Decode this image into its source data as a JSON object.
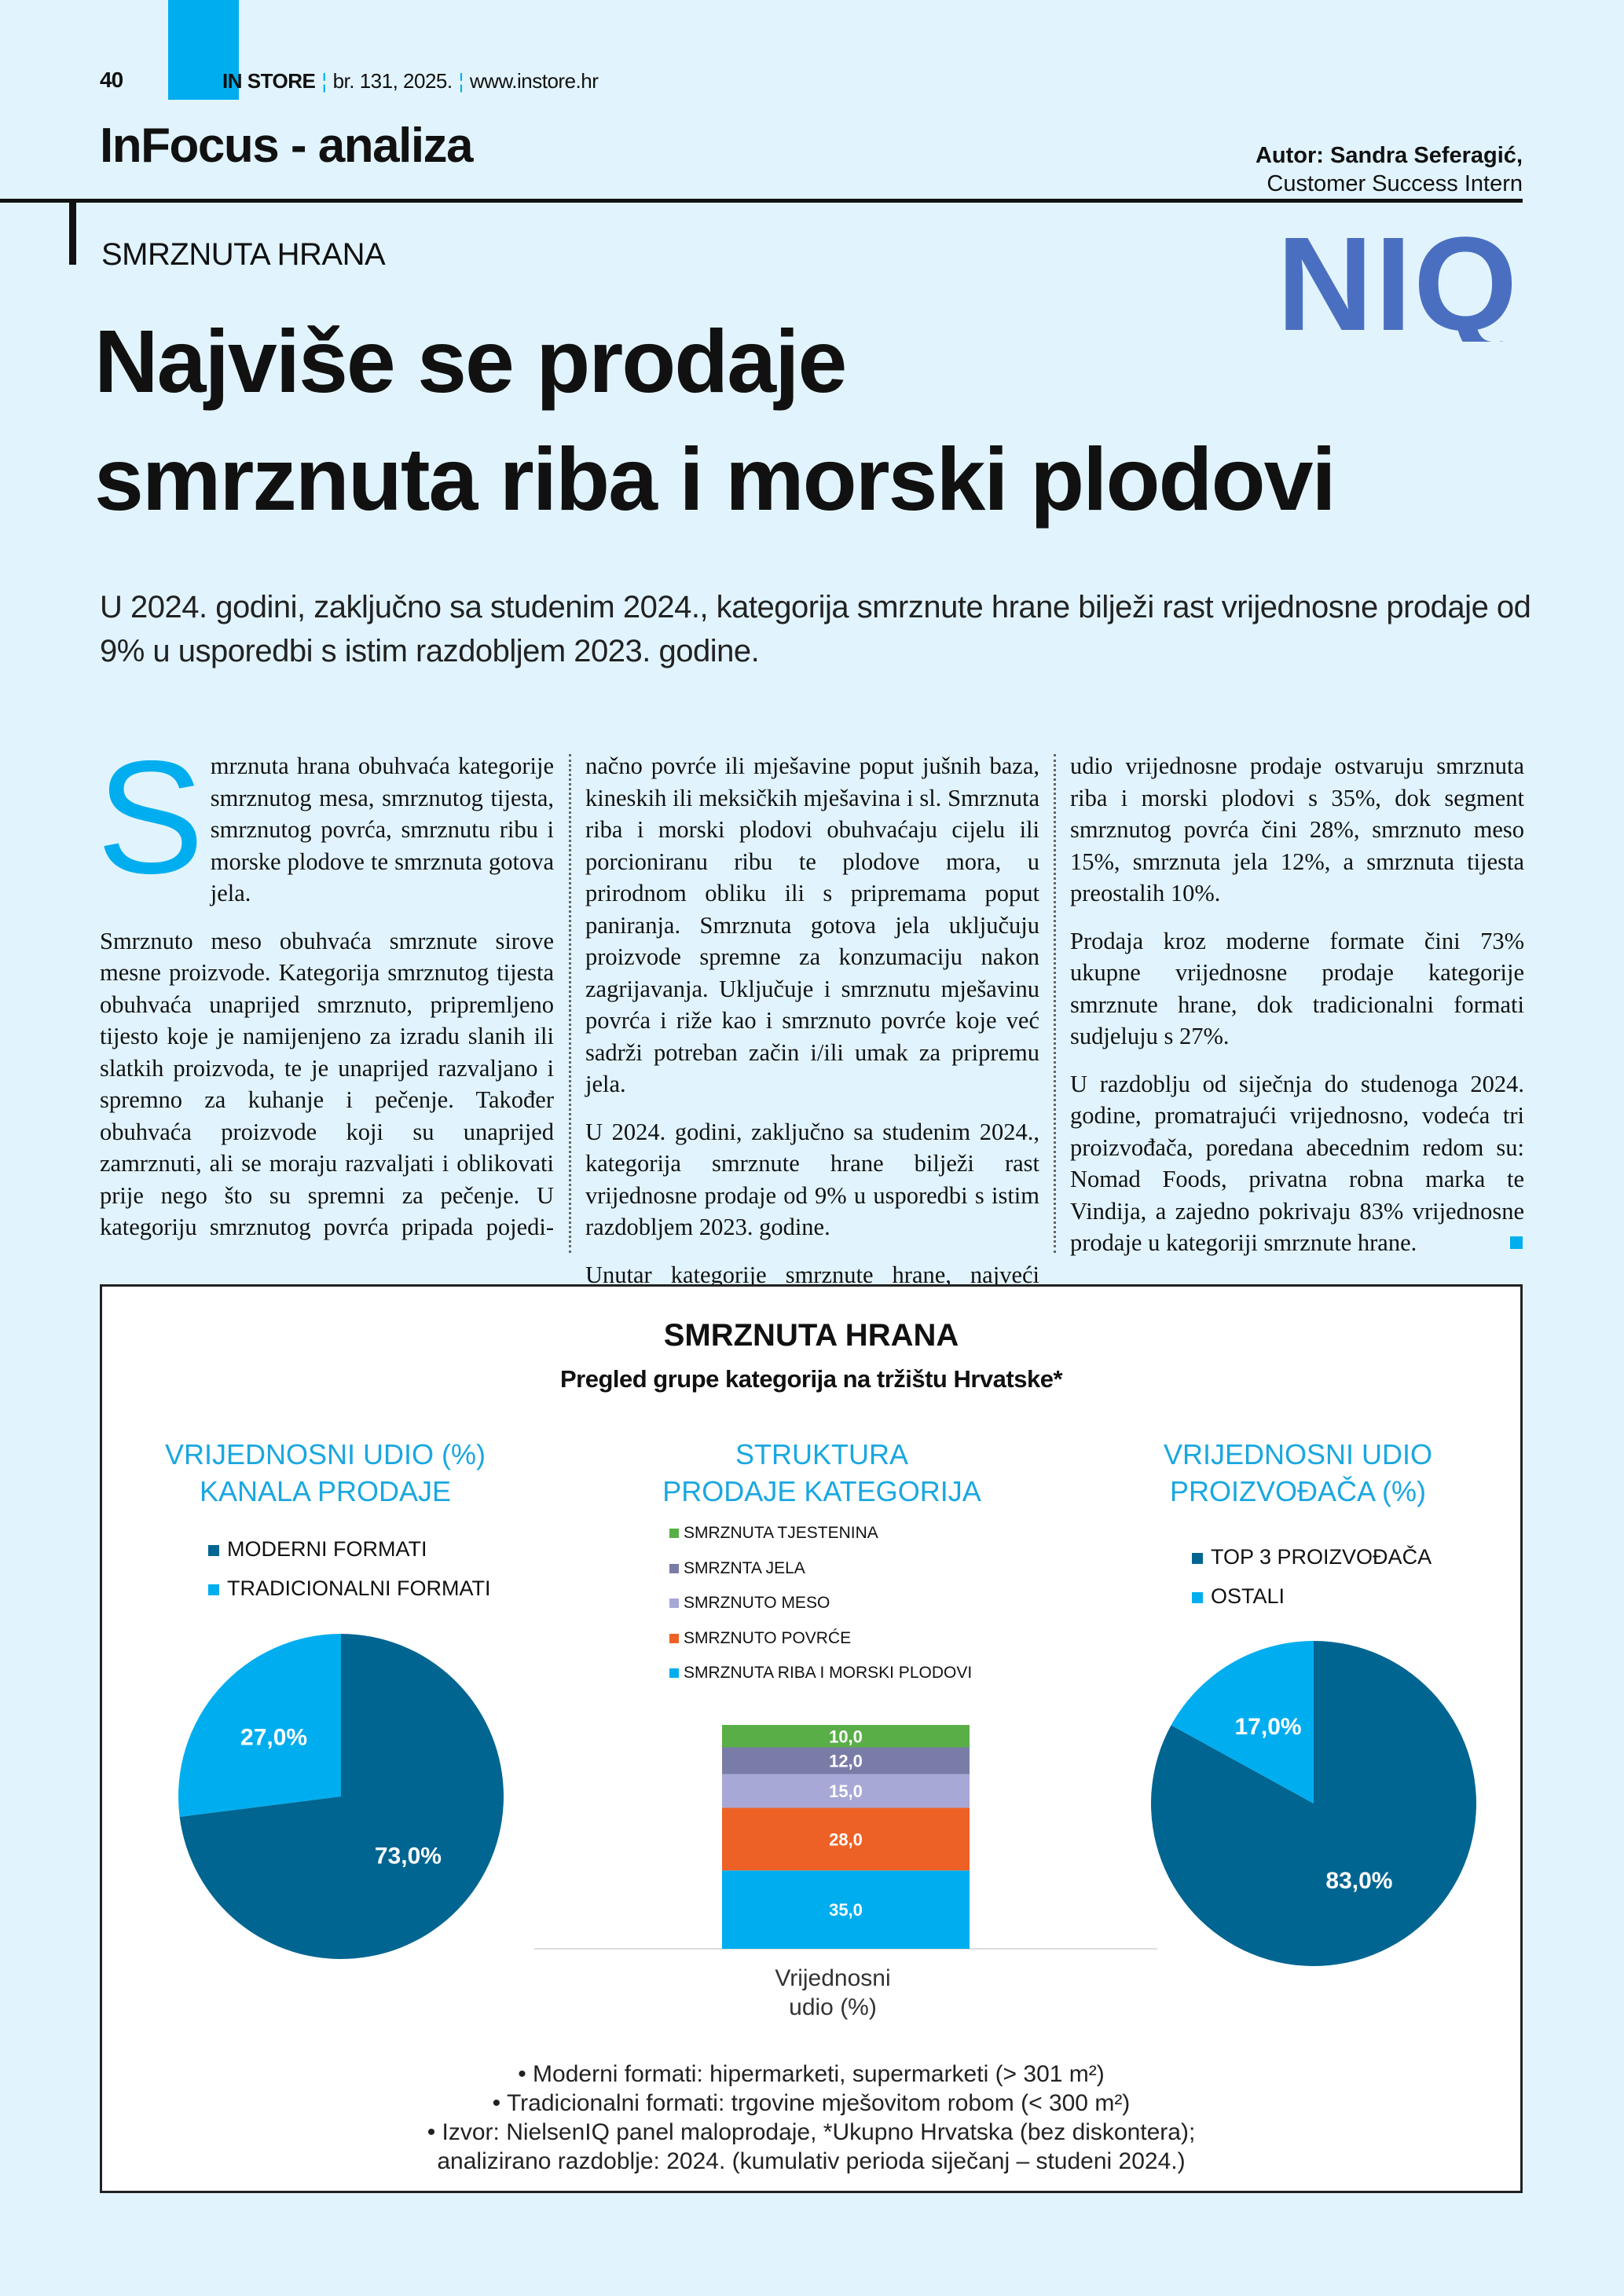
{
  "header": {
    "page_number": "40",
    "logo": "IN STORE",
    "issue": "br. 131, 2025.",
    "website": "www.instore.hr",
    "section": "InFocus - analiza",
    "author": "Autor: Sandra Seferagić,",
    "author_role": "Customer Success Intern",
    "brand_logo": "NIQ"
  },
  "article": {
    "kicker": "SMRZNUTA HRANA",
    "headline_line1": "Najviše se prodaje",
    "headline_line2": "smrznuta riba i morski plodovi",
    "lead": "U 2024. godini, zaključno sa studenim 2024., kategorija smrznute hrane bilježi rast vrijednosne prodaje od 9% u usporedbi s istim razdobljem 2023. godine.",
    "drop_cap": "S",
    "col1": [
      "mrznuta hrana obuhvaća kategorije smrznutog mesa, smrznutog tijesta, smrznutog povrća, smrznutu ribu i morske plodove te smrznuta gotova jela.",
      "Smrznuto meso obuhvaća smrznute sirove mesne proizvode. Kategorija smrznutog tijesta obuhvaća unaprijed smrznuto, pripremljeno tijesto koje je namijenjeno za izradu slanih ili slatkih proizvoda, te je unaprijed razvaljano i spremno za kuhanje i pečenje. Također obuhvaća proizvode koji su unaprijed zamrznuti, ali se moraju razvaljati i oblikovati prije nego što su spremni za pečenje. U kategoriju smrznutog povrća pripada pojedi-"
    ],
    "col2": [
      "načno povrće ili mješavine poput jušnih baza, kineskih ili meksičkih mješavina i sl. Smrznuta riba i morski plodovi obuhvaćaju cijelu ili porcioniranu ribu te plodove mora, u prirodnom obliku ili s pripremama poput paniranja. Smrznuta gotova jela uključuju proizvode spremne za konzumaciju nakon zagrijavanja. Uključuje i smrznutu mješavinu povrća i riže kao i smrznuto povrće koje već sadrži potreban začin i/ili umak za pripremu jela.",
      "U 2024. godini, zaključno sa studenim 2024., kategorija smrznute hrane bilježi rast vrijednosne prodaje od 9% u usporedbi s istim razdobljem 2023. godine.",
      "Unutar kategorije smrznute hrane, najveći"
    ],
    "col3": [
      "udio vrijednosne prodaje ostvaruju smrznuta riba i morski plodovi s 35%, dok segment smrznutog povrća čini 28%, smrznuto meso 15%, smrznuta jela 12%, a smrznuta tijesta preostalih 10%.",
      "Prodaja kroz moderne formate čini 73% ukupne vrijednosne prodaje kategorije smrznute hrane, dok tradicionalni formati sudjeluju s 27%.",
      "U razdoblju od siječnja do studenoga 2024. godine, promatrajući vrijednosno, vodeća tri proizvođača, poredana abecednim redom su: Nomad Foods, privatna robna marka te Vindija, a zajedno pokrivaju 83% vrijednosne prodaje u kategoriji smrznute hrane."
    ]
  },
  "infographic": {
    "title": "SMRZNUTA HRANA",
    "subtitle": "Pregled grupe kategorija na tržištu Hrvatske*",
    "notes": [
      "•   Moderni formati: hipermarketi, supermarketi (> 301 m²)",
      "•   Tradicionalni formati: trgovine mješovitom robom (< 300 m²)",
      "•   Izvor: NielsenIQ panel maloprodaje, *Ukupno Hrvatska (bez diskontera);",
      "analizirano razdoblje: 2024. (kumulativ perioda siječanj – studeni 2024.)"
    ]
  },
  "colors": {
    "background": "#e1f4fd",
    "accent": "#00aeef",
    "dark_blue": "#006591",
    "light_blue": "#00aeef",
    "green": "#5aae48",
    "slate": "#7a7ca8",
    "lavender": "#a7a8d6",
    "orange": "#ee6126"
  },
  "chart_data": [
    {
      "type": "pie",
      "title_line1": "VRIJEDNOSNI UDIO (%)",
      "title_line2": "KANALA PRODAJE",
      "legend_placement": "top",
      "slices": [
        {
          "name": "MODERNI FORMATI",
          "value": 73.0,
          "label": "73,0%",
          "color": "#006591"
        },
        {
          "name": "TRADICIONALNI FORMATI",
          "value": 27.0,
          "label": "27,0%",
          "color": "#00aeef"
        }
      ]
    },
    {
      "type": "bar",
      "stacked": true,
      "title_line1": "STRUKTURA",
      "title_line2": "PRODAJE KATEGORIJA",
      "categories": [
        "Vrijednosni udio (%)"
      ],
      "category_line1": "Vrijednosni",
      "category_line2": "udio (%)",
      "legend_placement": "top",
      "ylim": [
        0,
        100
      ],
      "series": [
        {
          "name": "SMRZNUTA RIBA I MORSKI PLODOVI",
          "values": [
            35.0
          ],
          "label": "35,0",
          "color": "#00aeef"
        },
        {
          "name": "SMRZNUTO POVRĆE",
          "values": [
            28.0
          ],
          "label": "28,0",
          "color": "#ee6126"
        },
        {
          "name": "SMRZNUTO MESO",
          "values": [
            15.0
          ],
          "label": "15,0",
          "color": "#a7a8d6"
        },
        {
          "name": "SMRZNTA JELA",
          "values": [
            12.0
          ],
          "label": "12,0",
          "color": "#7a7ca8"
        },
        {
          "name": "SMRZNUTA TJESTENINA",
          "values": [
            10.0
          ],
          "label": "10,0",
          "color": "#5aae48"
        }
      ]
    },
    {
      "type": "pie",
      "title_line1": "VRIJEDNOSNI UDIO",
      "title_line2": "PROIZVOĐAČA (%)",
      "legend_placement": "top",
      "slices": [
        {
          "name": "TOP 3 PROIZVOĐAČA",
          "value": 83.0,
          "label": "83,0%",
          "color": "#006591"
        },
        {
          "name": "OSTALI",
          "value": 17.0,
          "label": "17,0%",
          "color": "#00aeef"
        }
      ]
    }
  ]
}
